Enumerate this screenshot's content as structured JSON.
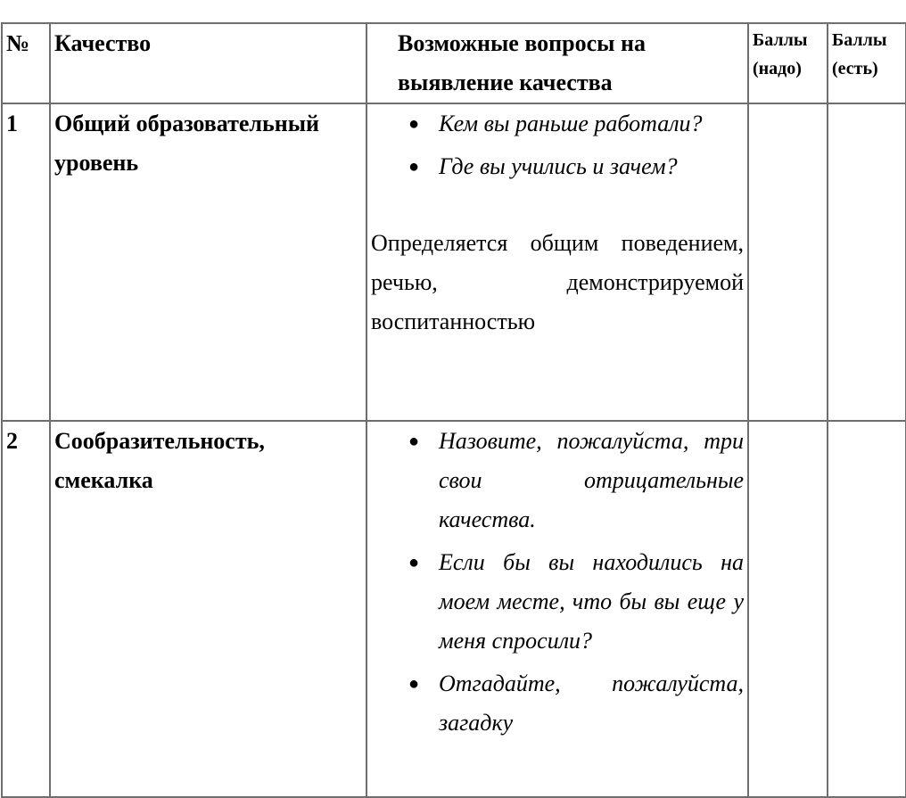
{
  "header": {
    "num": "№",
    "quality": "Качество",
    "questions": "Возможные вопросы на выявление качества",
    "score_needed": "Баллы (надо)",
    "score_actual": "Баллы (есть)"
  },
  "rows": [
    {
      "num": "1",
      "quality": "Общий образовательный уровень",
      "questions": [
        "Кем вы раньше работали?",
        "Где вы учились и зачем?"
      ],
      "note": "Определяется общим поведением, речью, демонстрируемой воспитанностью",
      "score_needed": "",
      "score_actual": ""
    },
    {
      "num": "2",
      "quality": "Сообразительность, смекалка",
      "questions": [
        "Назовите, пожалуйста, три свои отрицательные качества.",
        "Если бы вы находились на моем месте, что бы вы еще у меня спросили?",
        "Отгадайте, пожалуйста, загадку"
      ],
      "score_needed": "",
      "score_actual": ""
    }
  ]
}
